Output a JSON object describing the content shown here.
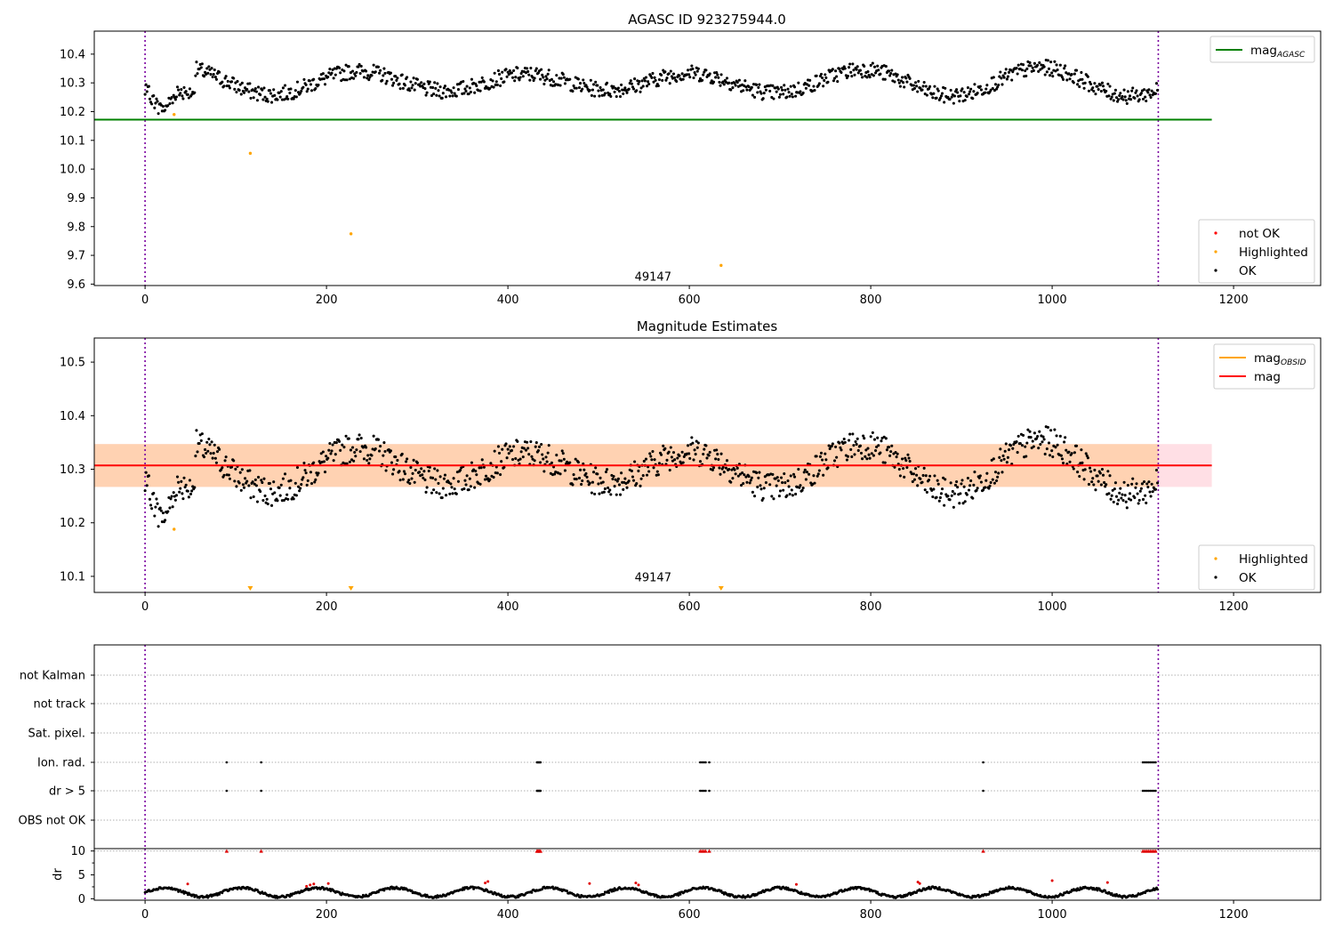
{
  "chart_data": [
    {
      "type": "scatter",
      "title": "AGASC ID 923275944.0",
      "xlim": [
        -56,
        1296
      ],
      "ylim": [
        9.595,
        10.48
      ],
      "xticks": [
        0,
        200,
        400,
        600,
        800,
        1000,
        1200
      ],
      "yticks": [
        9.6,
        9.7,
        9.8,
        9.9,
        10.0,
        10.1,
        10.2,
        10.3,
        10.4
      ],
      "annotation": {
        "text": "49147",
        "x": 560,
        "y": 9.625
      },
      "vlines": [
        0,
        1117
      ],
      "mag_agasc": {
        "value": 10.172,
        "x": [
          -56,
          1176
        ]
      },
      "highlighted": [
        [
          32,
          10.19
        ],
        [
          116,
          10.055
        ],
        [
          227,
          9.775
        ],
        [
          635,
          9.665
        ]
      ],
      "ok_series_summary": "about 1100 points from x=0 to x=1117, magnitude between about 10.20 and 10.41",
      "legends": [
        {
          "position": "top-right",
          "entries": [
            {
              "label": "mag",
              "subscript": "AGASC",
              "color": "#008000",
              "kind": "line"
            }
          ]
        },
        {
          "position": "lower-right",
          "entries": [
            {
              "label": "not OK",
              "color": "#ff0000",
              "kind": "dot"
            },
            {
              "label": "Highlighted",
              "color": "#ffa500",
              "kind": "dot"
            },
            {
              "label": "OK",
              "color": "#000000",
              "kind": "dot"
            }
          ]
        }
      ]
    },
    {
      "type": "scatter",
      "title": "Magnitude Estimates",
      "xlim": [
        -56,
        1296
      ],
      "ylim": [
        10.07,
        10.545
      ],
      "xticks": [
        0,
        200,
        400,
        600,
        800,
        1000,
        1200
      ],
      "yticks": [
        10.1,
        10.2,
        10.3,
        10.4,
        10.5
      ],
      "annotation": {
        "text": "49147",
        "x": 560,
        "y": 10.097
      },
      "vlines": [
        0,
        1117
      ],
      "mag": 10.307,
      "mag_band": [
        10.267,
        10.347
      ],
      "mag_obsid_band": [
        10.267,
        10.347
      ],
      "band_x": [
        -56,
        1176
      ],
      "highlighted": [
        [
          32,
          10.188
        ]
      ],
      "out_of_range_markers": [
        116,
        227,
        635
      ],
      "legends": [
        {
          "position": "top-right",
          "entries": [
            {
              "label": "mag",
              "subscript": "OBSID",
              "color": "#ffa500",
              "kind": "line"
            },
            {
              "label": "mag",
              "subscript": "",
              "color": "#ff0000",
              "kind": "line"
            }
          ]
        },
        {
          "position": "lower-right",
          "entries": [
            {
              "label": "Highlighted",
              "color": "#ffa500",
              "kind": "dot"
            },
            {
              "label": "OK",
              "color": "#000000",
              "kind": "dot"
            }
          ]
        }
      ]
    },
    {
      "type": "scatter",
      "xlim": [
        -56,
        1296
      ],
      "xticks": [
        0,
        200,
        400,
        600,
        800,
        1000,
        1200
      ],
      "flag_labels": [
        "not Kalman",
        "not track",
        "Sat. pixel.",
        "Ion. rad.",
        "dr > 5",
        "OBS not OK"
      ],
      "flag_points": {
        "Ion. rad.": [
          90,
          128,
          432,
          433,
          434,
          435,
          436,
          612,
          614,
          616,
          618,
          622,
          924,
          1100,
          1102,
          1104,
          1106,
          1108,
          1110,
          1112,
          1114
        ],
        "dr > 5": [
          90,
          128,
          432,
          433,
          434,
          435,
          436,
          612,
          614,
          616,
          618,
          622,
          924,
          1100,
          1102,
          1104,
          1106,
          1108,
          1110,
          1112,
          1114
        ]
      },
      "vlines": [
        0,
        1117
      ]
    },
    {
      "type": "scatter",
      "ylabel": "dr",
      "xlim": [
        -56,
        1296
      ],
      "ylim": [
        -0.3,
        10.5
      ],
      "xticks": [
        0,
        200,
        400,
        600,
        800,
        1000,
        1200
      ],
      "yticks": [
        0,
        5,
        10
      ],
      "clipped_points_x": [
        90,
        128,
        432,
        433,
        434,
        435,
        436,
        612,
        614,
        616,
        618,
        622,
        924,
        1100,
        1102,
        1104,
        1106,
        1108,
        1110,
        1112,
        1114
      ],
      "red_points": [
        [
          47,
          3.1
        ],
        [
          178,
          2.6
        ],
        [
          182,
          2.9
        ],
        [
          186,
          3.1
        ],
        [
          202,
          3.2
        ],
        [
          375,
          3.3
        ],
        [
          378,
          3.6
        ],
        [
          490,
          3.2
        ],
        [
          541,
          3.3
        ],
        [
          544,
          2.9
        ],
        [
          718,
          3.0
        ],
        [
          852,
          3.5
        ],
        [
          854,
          3.2
        ],
        [
          1000,
          3.8
        ],
        [
          1061,
          3.4
        ]
      ],
      "ok_series_summary": "about 1100 points from x=0 to x=1117, dr between about 0 and 3",
      "vlines": [
        0,
        1117
      ]
    }
  ]
}
